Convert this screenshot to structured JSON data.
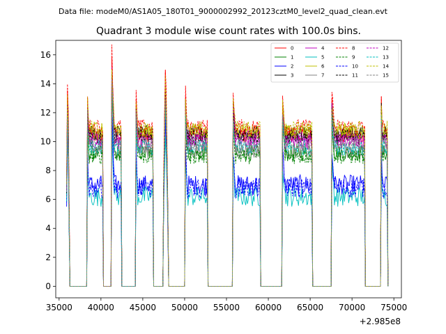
{
  "chart_data": {
    "type": "line",
    "suptitle": "Data file: modeM0/AS1A05_180T01_9000002992_20123cztM0_level2_quad_clean.evt",
    "title": "Quadrant 3 module wise count rates with 100.0s bins.",
    "xlabel": "",
    "ylabel": "",
    "x_offset_label": "+2.985e8",
    "xlim": [
      34600,
      75900
    ],
    "ylim": [
      -0.8,
      17.0
    ],
    "x_ticks": [
      35000,
      40000,
      45000,
      50000,
      55000,
      60000,
      65000,
      70000,
      75000
    ],
    "x_tick_labels": [
      "35000",
      "40000",
      "45000",
      "50000",
      "55000",
      "60000",
      "65000",
      "70000",
      "75000"
    ],
    "y_ticks": [
      0,
      2,
      4,
      6,
      8,
      10,
      12,
      14,
      16
    ],
    "y_tick_labels": [
      "0",
      "2",
      "4",
      "6",
      "8",
      "10",
      "12",
      "14",
      "16"
    ],
    "legend_position": "upper-right",
    "segments": [
      [
        35900,
        36200
      ],
      [
        38400,
        40200
      ],
      [
        41300,
        42400
      ],
      [
        44200,
        46200
      ],
      [
        47500,
        48000
      ],
      [
        50100,
        52700
      ],
      [
        55800,
        59000
      ],
      [
        61700,
        65200
      ],
      [
        67600,
        71500
      ],
      [
        73500,
        74200
      ]
    ],
    "series": [
      {
        "name": "0",
        "color": "#ff0000",
        "dash": "solid",
        "level": 10.4,
        "peak": 16.0
      },
      {
        "name": "1",
        "color": "#008000",
        "dash": "solid",
        "level": 9.2,
        "peak": 14.0
      },
      {
        "name": "2",
        "color": "#0000ff",
        "dash": "solid",
        "level": 7.0,
        "peak": 12.0
      },
      {
        "name": "3",
        "color": "#000000",
        "dash": "solid",
        "level": 10.6,
        "peak": 14.6
      },
      {
        "name": "4",
        "color": "#bf00bf",
        "dash": "solid",
        "level": 10.0,
        "peak": 14.8
      },
      {
        "name": "5",
        "color": "#00bfbf",
        "dash": "solid",
        "level": 6.2,
        "peak": 11.5
      },
      {
        "name": "6",
        "color": "#bfbf00",
        "dash": "solid",
        "level": 10.7,
        "peak": 14.5
      },
      {
        "name": "7",
        "color": "#808080",
        "dash": "solid",
        "level": 9.4,
        "peak": 13.8
      },
      {
        "name": "8",
        "color": "#ff0000",
        "dash": "dashed",
        "level": 11.0,
        "peak": 16.3
      },
      {
        "name": "9",
        "color": "#008000",
        "dash": "dashed",
        "level": 9.0,
        "peak": 14.0
      },
      {
        "name": "10",
        "color": "#0000ff",
        "dash": "dashed",
        "level": 6.8,
        "peak": 12.2
      },
      {
        "name": "11",
        "color": "#000000",
        "dash": "dashed",
        "level": 10.3,
        "peak": 14.4
      },
      {
        "name": "12",
        "color": "#bf00bf",
        "dash": "dashed",
        "level": 10.2,
        "peak": 14.6
      },
      {
        "name": "13",
        "color": "#00bfbf",
        "dash": "dashed",
        "level": 9.6,
        "peak": 13.5
      },
      {
        "name": "14",
        "color": "#bfbf00",
        "dash": "dashed",
        "level": 10.9,
        "peak": 15.0
      },
      {
        "name": "15",
        "color": "#808080",
        "dash": "dashed",
        "level": 9.8,
        "peak": 14.0
      }
    ]
  }
}
